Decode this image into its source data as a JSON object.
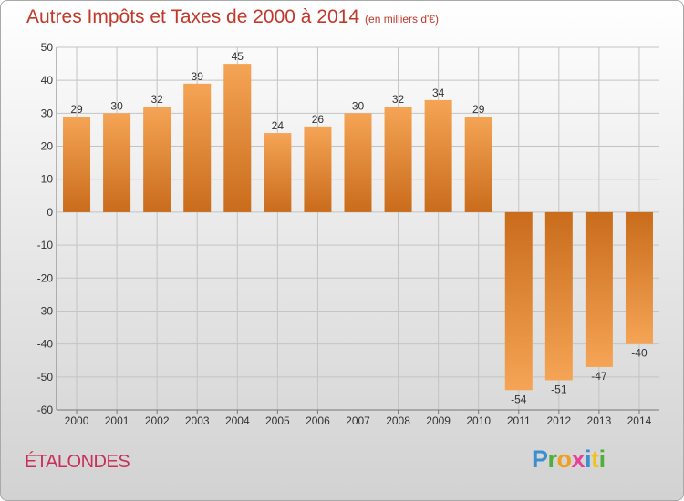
{
  "title": "Autres Impôts et Taxes de 2000 à 2014",
  "unit": "(en milliers d'€)",
  "location": "ÉTALONDES",
  "logo_text": "Proxiti",
  "colors": {
    "bar_light": "#f5a455",
    "bar_dark": "#c96c1c",
    "title": "#c0392b",
    "location": "#c8305a"
  },
  "chart_data": {
    "type": "bar",
    "categories": [
      "2000",
      "2001",
      "2002",
      "2003",
      "2004",
      "2005",
      "2006",
      "2007",
      "2008",
      "2009",
      "2010",
      "2011",
      "2012",
      "2013",
      "2014"
    ],
    "values": [
      29,
      30,
      32,
      39,
      45,
      24,
      26,
      30,
      32,
      34,
      29,
      -54,
      -51,
      -47,
      -40
    ],
    "ylim": [
      -60,
      50
    ],
    "yticks": [
      50,
      40,
      30,
      20,
      10,
      0,
      -10,
      -20,
      -30,
      -40,
      -50,
      -60
    ],
    "grid": true
  }
}
